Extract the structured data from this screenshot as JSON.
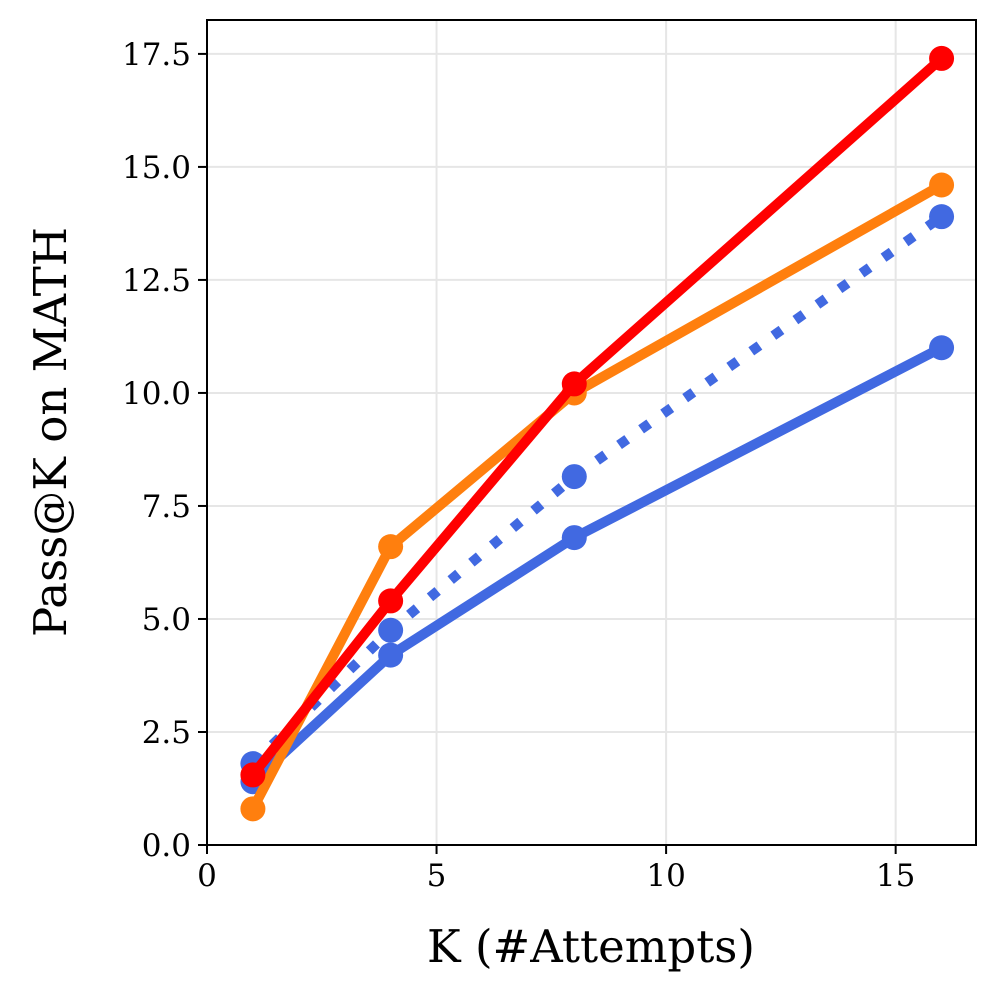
{
  "chart_data": {
    "type": "line",
    "title": "",
    "xlabel": "K (#Attempts)",
    "ylabel": "Pass@K on MATH",
    "xlim": [
      0,
      16.75
    ],
    "ylim": [
      0,
      18.25
    ],
    "xticks": [
      0,
      5,
      10,
      15
    ],
    "xtick_labels": [
      "0",
      "5",
      "10",
      "15"
    ],
    "yticks": [
      0,
      2.5,
      5,
      7.5,
      10,
      12.5,
      15,
      17.5
    ],
    "ytick_labels": [
      "0.0",
      "2.5",
      "5.0",
      "7.5",
      "10.0",
      "12.5",
      "15.0",
      "17.5"
    ],
    "grid": true,
    "legend": "none",
    "x": [
      1,
      4,
      8,
      16
    ],
    "series": [
      {
        "name": "blue-solid",
        "color": "#4169e1",
        "style": "solid",
        "values": [
          1.4,
          4.2,
          6.8,
          11.0
        ]
      },
      {
        "name": "blue-dotted",
        "color": "#4169e1",
        "style": "dotted",
        "values": [
          1.8,
          4.75,
          8.15,
          13.9
        ]
      },
      {
        "name": "orange-solid",
        "color": "#ff7f0e",
        "style": "solid",
        "values": [
          0.8,
          6.6,
          10.0,
          14.6
        ]
      },
      {
        "name": "red-solid",
        "color": "#ff0000",
        "style": "solid",
        "values": [
          1.55,
          5.4,
          10.2,
          17.4
        ]
      }
    ]
  }
}
